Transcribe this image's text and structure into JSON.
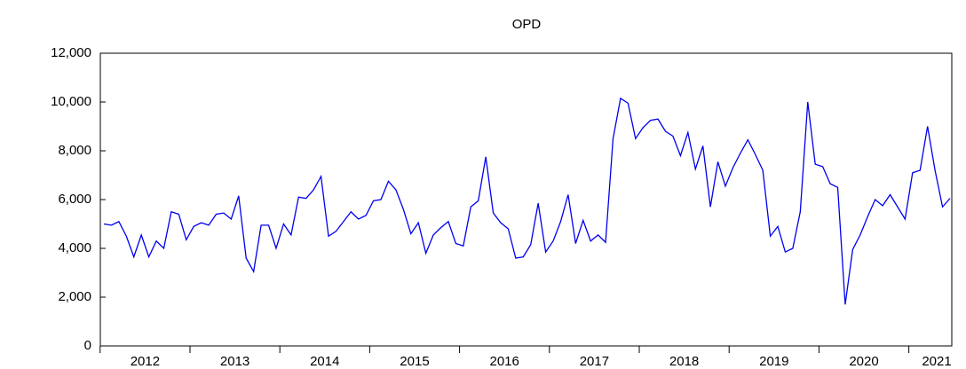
{
  "chart_data": {
    "type": "line",
    "title": "OPD",
    "categories": [
      "2012",
      null,
      null,
      null,
      null,
      null,
      null,
      null,
      null,
      null,
      null,
      null,
      "2013",
      null,
      null,
      null,
      null,
      null,
      null,
      null,
      null,
      null,
      null,
      null,
      "2014",
      null,
      null,
      null,
      null,
      null,
      null,
      null,
      null,
      null,
      null,
      null,
      "2015",
      null,
      null,
      null,
      null,
      null,
      null,
      null,
      null,
      null,
      null,
      null,
      "2016",
      null,
      null,
      null,
      null,
      null,
      null,
      null,
      null,
      null,
      null,
      null,
      "2017",
      null,
      null,
      null,
      null,
      null,
      null,
      null,
      null,
      null,
      null,
      null,
      "2018",
      null,
      null,
      null,
      null,
      null,
      null,
      null,
      null,
      null,
      null,
      null,
      "2019",
      null,
      null,
      null,
      null,
      null,
      null,
      null,
      null,
      null,
      null,
      null,
      "2020",
      null,
      null,
      null,
      null,
      null,
      null,
      null,
      null,
      null,
      null,
      null,
      "2021",
      null,
      null,
      null,
      null,
      null
    ],
    "series": [
      {
        "name": "OPD",
        "color": "#0000ee",
        "values": [
          5000,
          4950,
          5100,
          4500,
          3650,
          4550,
          3650,
          4300,
          4000,
          5500,
          5400,
          4350,
          4900,
          5050,
          4950,
          5400,
          5450,
          5200,
          6150,
          3600,
          3050,
          4950,
          4950,
          4000,
          5000,
          4550,
          6100,
          6050,
          6400,
          6950,
          4500,
          4700,
          5100,
          5500,
          5200,
          5350,
          5950,
          6000,
          6750,
          6400,
          5600,
          4600,
          5050,
          3800,
          4550,
          4850,
          5100,
          4200,
          4100,
          5700,
          5950,
          7750,
          5450,
          5050,
          4800,
          3600,
          3650,
          4150,
          5850,
          3850,
          4300,
          5100,
          6200,
          4200,
          5150,
          4300,
          4550,
          4250,
          8500,
          10150,
          9950,
          8500,
          8950,
          9250,
          9300,
          8800,
          8600,
          7800,
          8750,
          7250,
          8200,
          5700,
          7550,
          6550,
          7300,
          7900,
          8450,
          7850,
          7200,
          4500,
          4900,
          3850,
          4000,
          5500,
          10000,
          7450,
          7350,
          6650,
          6500,
          1700,
          3950,
          4550,
          5300,
          6000,
          5750,
          6200,
          5700,
          5200,
          7100,
          7200,
          9000,
          7200,
          5700,
          6050
        ]
      }
    ],
    "ylim": [
      0,
      12000
    ],
    "yticks": [
      0,
      {
        "value": 2000,
        "label": "2,000"
      },
      {
        "value": 4000,
        "label": "4,000"
      },
      {
        "value": 6000,
        "label": "6,000"
      },
      {
        "value": 8000,
        "label": "8,000"
      },
      {
        "value": 10000,
        "label": "10,000"
      },
      {
        "value": 12000,
        "label": "12,000"
      }
    ],
    "grid": false
  }
}
